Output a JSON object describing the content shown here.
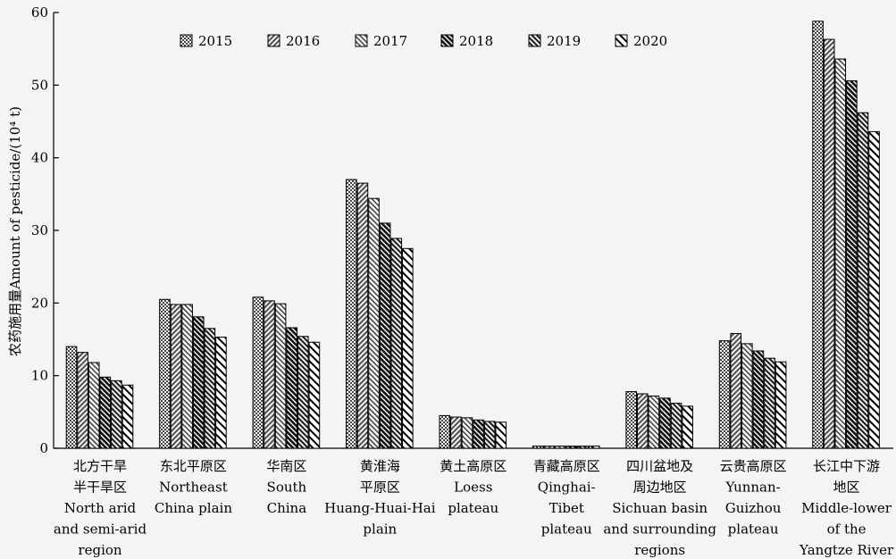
{
  "chart_data": {
    "type": "bar",
    "ylabel": "农药施用量Amount of pesticide/(10⁴ t)",
    "ylim": [
      0,
      60
    ],
    "yticks": [
      0,
      10,
      20,
      30,
      40,
      50,
      60
    ],
    "legend_position": "top",
    "grid": false,
    "categories": [
      [
        "北方干旱",
        "半干旱区",
        "North arid",
        "and semi-arid",
        "region"
      ],
      [
        "东北平原区",
        "Northeast",
        "China plain"
      ],
      [
        "华南区",
        "South",
        "China"
      ],
      [
        "黄淮海",
        "平原区",
        "Huang-Huai-Hai",
        "plain"
      ],
      [
        "黄土高原区",
        "Loess",
        "plateau"
      ],
      [
        "青藏高原区",
        "Qinghai-",
        "Tibet",
        "plateau"
      ],
      [
        "四川盆地及",
        "周边地区",
        "Sichuan basin",
        "and surrounding",
        "regions"
      ],
      [
        "云贵高原区",
        "Yunnan-",
        "Guizhou",
        "plateau"
      ],
      [
        "长江中下游",
        "地区",
        "Middle-lower",
        "of the",
        "Yangtze River"
      ]
    ],
    "series": [
      {
        "name": "2015",
        "values": [
          14.0,
          20.5,
          20.8,
          37.0,
          4.5,
          0.3,
          7.8,
          14.8,
          58.8
        ]
      },
      {
        "name": "2016",
        "values": [
          13.2,
          19.8,
          20.3,
          36.5,
          4.3,
          0.3,
          7.5,
          15.8,
          56.3
        ]
      },
      {
        "name": "2017",
        "values": [
          11.8,
          19.8,
          19.9,
          34.4,
          4.2,
          0.3,
          7.2,
          14.4,
          53.6
        ]
      },
      {
        "name": "2018",
        "values": [
          9.8,
          18.1,
          16.6,
          31.0,
          3.9,
          0.3,
          6.9,
          13.4,
          50.6
        ]
      },
      {
        "name": "2019",
        "values": [
          9.3,
          16.5,
          15.4,
          28.9,
          3.7,
          0.3,
          6.2,
          12.4,
          46.2
        ]
      },
      {
        "name": "2020",
        "values": [
          8.7,
          15.3,
          14.6,
          27.5,
          3.6,
          0.3,
          5.8,
          11.9,
          43.6
        ]
      }
    ]
  }
}
